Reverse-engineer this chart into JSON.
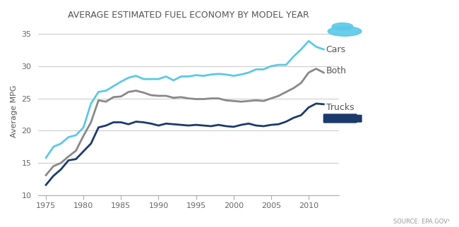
{
  "title": "AVERAGE ESTIMATED FUEL ECONOMY BY MODEL YEAR",
  "ylabel": "Average MPG",
  "source": "SOURCE: EPA.GOV¹",
  "ylim": [
    10,
    36
  ],
  "xlim": [
    1974,
    2014
  ],
  "yticks": [
    10,
    15,
    20,
    25,
    30,
    35
  ],
  "xticks": [
    1975,
    1980,
    1985,
    1990,
    1995,
    2000,
    2005,
    2010
  ],
  "bg_color": "#ffffff",
  "grid_color": "#cccccc",
  "cars_color": "#5bc8e8",
  "both_color": "#888888",
  "trucks_color": "#1a3a6b",
  "years": [
    1975,
    1976,
    1977,
    1978,
    1979,
    1980,
    1981,
    1982,
    1983,
    1984,
    1985,
    1986,
    1987,
    1988,
    1989,
    1990,
    1991,
    1992,
    1993,
    1994,
    1995,
    1996,
    1997,
    1998,
    1999,
    2000,
    2001,
    2002,
    2003,
    2004,
    2005,
    2006,
    2007,
    2008,
    2009,
    2010,
    2011,
    2012
  ],
  "cars": [
    15.8,
    17.5,
    18.0,
    19.0,
    19.3,
    20.5,
    24.2,
    26.0,
    26.2,
    26.9,
    27.6,
    28.2,
    28.5,
    28.0,
    28.0,
    28.0,
    28.4,
    27.8,
    28.4,
    28.4,
    28.6,
    28.5,
    28.7,
    28.8,
    28.7,
    28.5,
    28.7,
    29.0,
    29.5,
    29.5,
    30.0,
    30.2,
    30.2,
    31.5,
    32.6,
    33.9,
    33.0,
    32.6
  ],
  "both": [
    13.1,
    14.5,
    15.0,
    16.0,
    16.9,
    19.2,
    21.3,
    24.7,
    24.5,
    25.2,
    25.3,
    26.0,
    26.2,
    25.9,
    25.5,
    25.4,
    25.4,
    25.1,
    25.2,
    25.0,
    24.9,
    24.9,
    25.0,
    25.0,
    24.7,
    24.6,
    24.5,
    24.6,
    24.7,
    24.6,
    25.0,
    25.4,
    26.0,
    26.6,
    27.4,
    29.0,
    29.6,
    29.0
  ],
  "trucks": [
    11.6,
    13.0,
    14.0,
    15.4,
    15.6,
    16.8,
    18.0,
    20.5,
    20.8,
    21.3,
    21.3,
    21.0,
    21.4,
    21.3,
    21.1,
    20.8,
    21.1,
    21.0,
    20.9,
    20.8,
    20.9,
    20.8,
    20.7,
    20.9,
    20.7,
    20.6,
    20.9,
    21.1,
    20.8,
    20.7,
    20.9,
    21.0,
    21.4,
    22.0,
    22.4,
    23.6,
    24.2,
    24.1
  ]
}
